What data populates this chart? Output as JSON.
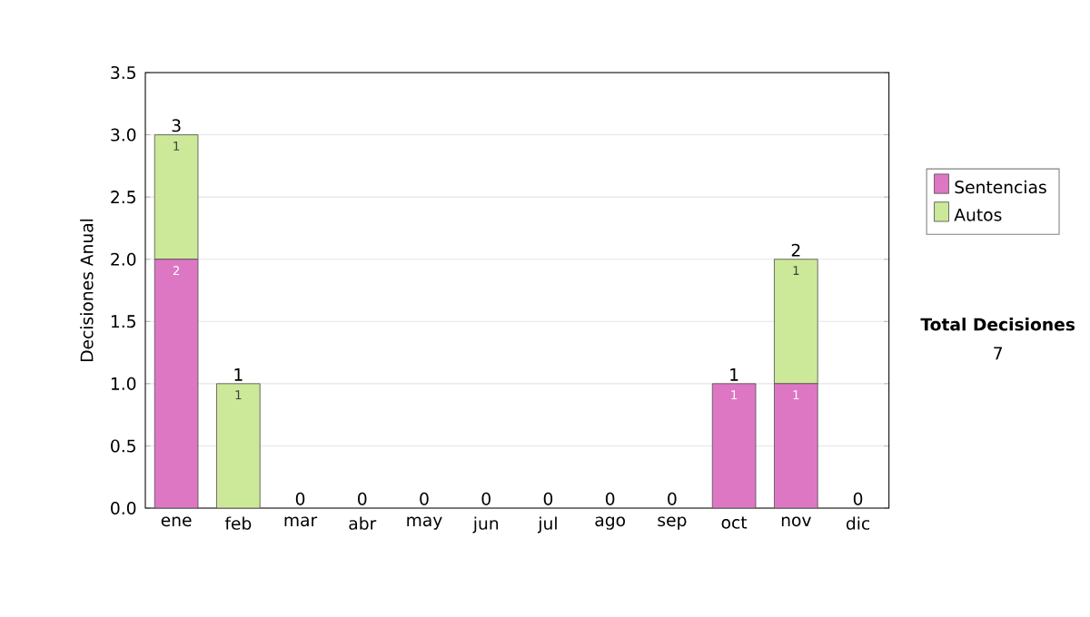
{
  "chart_data": {
    "type": "bar",
    "stacked": true,
    "ylabel": "Decisiones Anual",
    "categories": [
      "ene",
      "feb",
      "mar",
      "abr",
      "may",
      "jun",
      "jul",
      "ago",
      "sep",
      "oct",
      "nov",
      "dic"
    ],
    "series": [
      {
        "name": "Sentencias",
        "color": "#dd77c4",
        "values": [
          2,
          0,
          0,
          0,
          0,
          0,
          0,
          0,
          0,
          1,
          1,
          0
        ],
        "value_labels": [
          "2",
          null,
          null,
          null,
          null,
          null,
          null,
          null,
          null,
          "1",
          "1",
          null
        ]
      },
      {
        "name": "Autos",
        "color": "#cce899",
        "values": [
          1,
          1,
          0,
          0,
          0,
          0,
          0,
          0,
          0,
          0,
          1,
          0
        ],
        "value_labels": [
          "1",
          "1",
          null,
          null,
          null,
          null,
          null,
          null,
          null,
          null,
          "1",
          null
        ]
      }
    ],
    "totals": [
      "3",
      "1",
      "0",
      "0",
      "0",
      "0",
      "0",
      "0",
      "0",
      "1",
      "2",
      "0"
    ],
    "ylim": [
      0,
      3.5
    ],
    "yticks": [
      {
        "value": 0,
        "label": "0.0"
      },
      {
        "value": 0.5,
        "label": "0.5"
      },
      {
        "value": 1,
        "label": "1.0"
      },
      {
        "value": 1.5,
        "label": "1.5"
      },
      {
        "value": 2,
        "label": "2.0"
      },
      {
        "value": 2.5,
        "label": "2.5"
      },
      {
        "value": 3,
        "label": "3.0"
      },
      {
        "value": 3.5,
        "label": "3.5"
      }
    ],
    "grid": "y",
    "legend": "right",
    "annotations": [
      "Total Decisiones",
      "7"
    ]
  }
}
